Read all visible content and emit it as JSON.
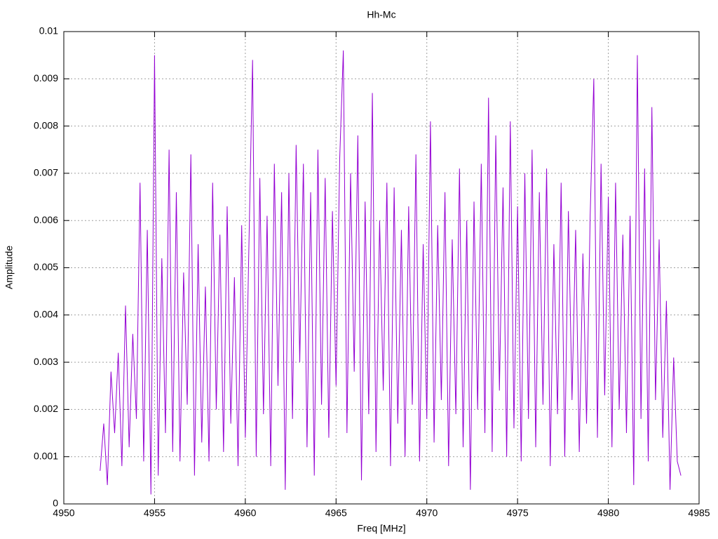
{
  "chart_data": {
    "type": "line",
    "title": "Hh-Mc",
    "x_label": "Freq [MHz]",
    "y_label": "Amplitude",
    "xlim": [
      4950,
      4985
    ],
    "xticks": [
      4950,
      4955,
      4960,
      4965,
      4970,
      4975,
      4980,
      4985
    ],
    "ylim": [
      0,
      0.01
    ],
    "yticks": [
      0,
      0.001,
      0.002,
      0.003,
      0.004,
      0.005,
      0.006,
      0.007,
      0.008,
      0.009,
      0.01
    ],
    "grid": true,
    "x": [
      4952,
      4952.2,
      4952.4,
      4952.6,
      4952.8,
      4953,
      4953.2,
      4953.4,
      4953.6,
      4953.8,
      4954,
      4954.2,
      4954.4,
      4954.6,
      4954.8,
      4955,
      4955.2,
      4955.4,
      4955.6,
      4955.8,
      4956,
      4956.2,
      4956.4,
      4956.6,
      4956.8,
      4957,
      4957.2,
      4957.4,
      4957.6,
      4957.8,
      4958,
      4958.2,
      4958.4,
      4958.6,
      4958.8,
      4959,
      4959.2,
      4959.4,
      4959.6,
      4959.8,
      4960,
      4960.2,
      4960.4,
      4960.6,
      4960.8,
      4961,
      4961.2,
      4961.4,
      4961.6,
      4961.8,
      4962,
      4962.2,
      4962.4,
      4962.6,
      4962.8,
      4963,
      4963.2,
      4963.4,
      4963.6,
      4963.8,
      4964,
      4964.2,
      4964.4,
      4964.6,
      4964.8,
      4965,
      4965.2,
      4965.4,
      4965.6,
      4965.8,
      4966,
      4966.2,
      4966.4,
      4966.6,
      4966.8,
      4967,
      4967.2,
      4967.4,
      4967.6,
      4967.8,
      4968,
      4968.2,
      4968.4,
      4968.6,
      4968.8,
      4969,
      4969.2,
      4969.4,
      4969.6,
      4969.8,
      4970,
      4970.2,
      4970.4,
      4970.6,
      4970.8,
      4971,
      4971.2,
      4971.4,
      4971.6,
      4971.8,
      4972,
      4972.2,
      4972.4,
      4972.6,
      4972.8,
      4973,
      4973.2,
      4973.4,
      4973.6,
      4973.8,
      4974,
      4974.2,
      4974.4,
      4974.6,
      4974.8,
      4975,
      4975.2,
      4975.4,
      4975.6,
      4975.8,
      4976,
      4976.2,
      4976.4,
      4976.6,
      4976.8,
      4977,
      4977.2,
      4977.4,
      4977.6,
      4977.8,
      4978,
      4978.2,
      4978.4,
      4978.6,
      4978.8,
      4979,
      4979.2,
      4979.4,
      4979.6,
      4979.8,
      4980,
      4980.2,
      4980.4,
      4980.6,
      4980.8,
      4981,
      4981.2,
      4981.4,
      4981.6,
      4981.8,
      4982,
      4982.2,
      4982.4,
      4982.6,
      4982.8,
      4983,
      4983.2,
      4983.4,
      4983.6,
      4983.8,
      4984
    ],
    "series": [
      {
        "color": "#9400d3",
        "values": [
          0.0007,
          0.0017,
          0.0004,
          0.0028,
          0.0015,
          0.0032,
          0.0008,
          0.0042,
          0.0012,
          0.0036,
          0.0018,
          0.0068,
          0.0009,
          0.0058,
          0.0002,
          0.0095,
          0.0006,
          0.0052,
          0.0015,
          0.0075,
          0.0011,
          0.0066,
          0.0009,
          0.0049,
          0.0021,
          0.0074,
          0.0006,
          0.0055,
          0.0013,
          0.0046,
          0.0009,
          0.0068,
          0.002,
          0.0057,
          0.0011,
          0.0063,
          0.0017,
          0.0048,
          0.0008,
          0.0059,
          0.0014,
          0.0055,
          0.0094,
          0.001,
          0.0069,
          0.0019,
          0.0061,
          0.0008,
          0.0072,
          0.0025,
          0.0066,
          0.0003,
          0.007,
          0.0018,
          0.0076,
          0.003,
          0.0072,
          0.0012,
          0.0066,
          0.0006,
          0.0075,
          0.0021,
          0.0069,
          0.0014,
          0.0062,
          0.0025,
          0.0073,
          0.0096,
          0.0015,
          0.007,
          0.0028,
          0.0078,
          0.0005,
          0.0064,
          0.0019,
          0.0087,
          0.0011,
          0.006,
          0.0024,
          0.0068,
          0.0008,
          0.0067,
          0.0017,
          0.0058,
          0.001,
          0.0063,
          0.0021,
          0.0074,
          0.0009,
          0.0055,
          0.0018,
          0.0081,
          0.0013,
          0.0059,
          0.0022,
          0.0066,
          0.0008,
          0.0056,
          0.0019,
          0.0071,
          0.0012,
          0.006,
          0.0003,
          0.0064,
          0.002,
          0.0072,
          0.0015,
          0.0086,
          0.0011,
          0.0078,
          0.0024,
          0.0067,
          0.001,
          0.0081,
          0.0016,
          0.0063,
          0.0009,
          0.007,
          0.0018,
          0.0075,
          0.0012,
          0.0066,
          0.0021,
          0.0071,
          0.0008,
          0.0055,
          0.0019,
          0.0068,
          0.001,
          0.0062,
          0.0022,
          0.0058,
          0.0011,
          0.0053,
          0.0017,
          0.0061,
          0.009,
          0.0014,
          0.0072,
          0.0023,
          0.0065,
          0.0012,
          0.0068,
          0.002,
          0.0057,
          0.0015,
          0.0061,
          0.0004,
          0.0095,
          0.0018,
          0.0071,
          0.0009,
          0.0084,
          0.0022,
          0.0056,
          0.0014,
          0.0043,
          0.0003,
          0.0031,
          0.0009,
          0.0006
        ]
      }
    ]
  }
}
